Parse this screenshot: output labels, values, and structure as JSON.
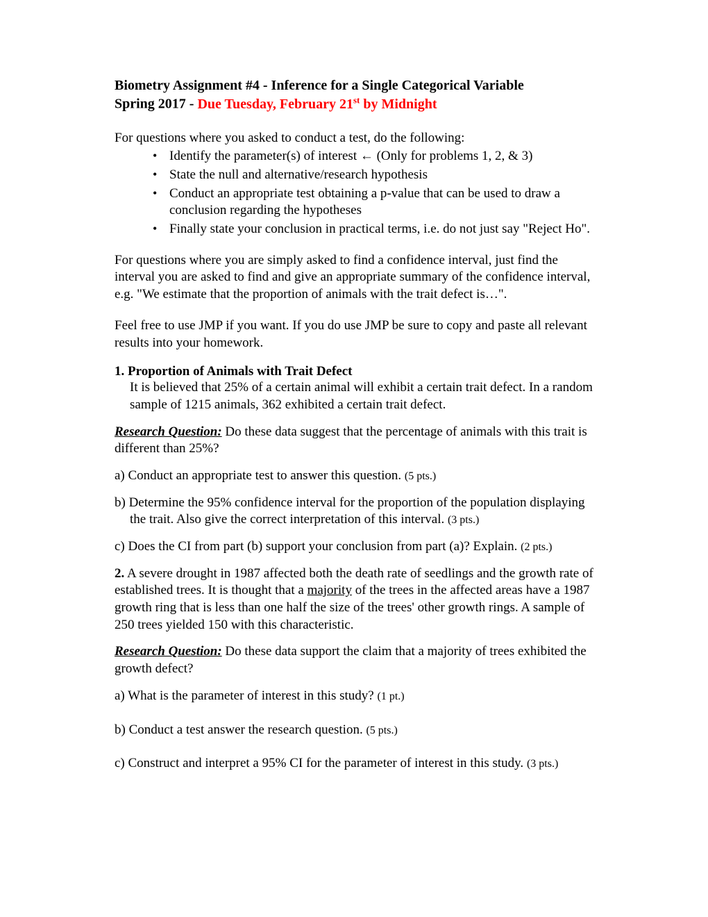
{
  "title": {
    "line1": "Biometry Assignment #4 - Inference for a Single Categorical Variable",
    "line2_prefix": "Spring 2017 -  ",
    "due_part1": "Due Tuesday, February 21",
    "due_sup": "st",
    "due_part2": " by Midnight"
  },
  "intro": "For questions where you asked to conduct a test, do the following:",
  "bullets": {
    "b1_text": "Identify the parameter(s) of interest ",
    "b1_arrow": "←",
    "b1_tail": " (Only for problems 1, 2, & 3)",
    "b2": "State the null and alternative/research hypothesis",
    "b3": "Conduct an appropriate test obtaining a p-value that can be used to draw a conclusion regarding the hypotheses",
    "b4": "Finally state your conclusion in practical terms, i.e. do not just say \"Reject Ho\"."
  },
  "para1": "For questions where you are simply asked to find a confidence interval, just find the interval you are asked to find and give an appropriate summary of the confidence interval, e.g. \"We estimate that the proportion of animals with the trait defect is…\".",
  "para2": "Feel free to use JMP if you want.  If you do use JMP be sure to copy and paste all relevant results into your homework.",
  "q1": {
    "header": "1.  Proportion of Animals with Trait Defect",
    "body": "It is believed that 25% of a certain animal will exhibit a certain trait defect.  In a random sample of 1215 animals, 362 exhibited a certain trait defect.",
    "rq_label": "Research Question:",
    "rq_text": " Do these data suggest that the percentage of animals with this trait is different than 25%?",
    "a": "a)  Conduct an appropriate test to answer this question.  ",
    "a_pts": "(5 pts.)",
    "b": "b) Determine the 95% confidence interval for the proportion of the population displaying the trait. Also give the correct interpretation of this interval. ",
    "b_pts": "(3 pts.)",
    "c": "c) Does the CI from part (b) support your conclusion from part (a)?  Explain.  ",
    "c_pts": "(2 pts.)"
  },
  "q2": {
    "header_bold": "2.",
    "header_text1": " A severe drought in 1987 affected both the death rate of seedlings and the growth rate of established trees. It is thought that a ",
    "majority": "majority",
    "header_text2": " of the trees in the affected areas have a 1987 growth ring that is less than one half the size of the trees' other growth rings. A sample of 250 trees yielded 150 with this characteristic.",
    "rq_label": "Research Question:",
    "rq_text": " Do these data support the claim that a majority of trees exhibited the growth defect?",
    "a": "a)   What is the parameter of interest in this study? ",
    "a_pts": "(1 pt.)",
    "b": "b)   Conduct a test answer the research question.  ",
    "b_pts": "(5 pts.)",
    "c": "c)   Construct and interpret a 95% CI for the parameter of interest in this study. ",
    "c_pts": "(3 pts.)"
  }
}
